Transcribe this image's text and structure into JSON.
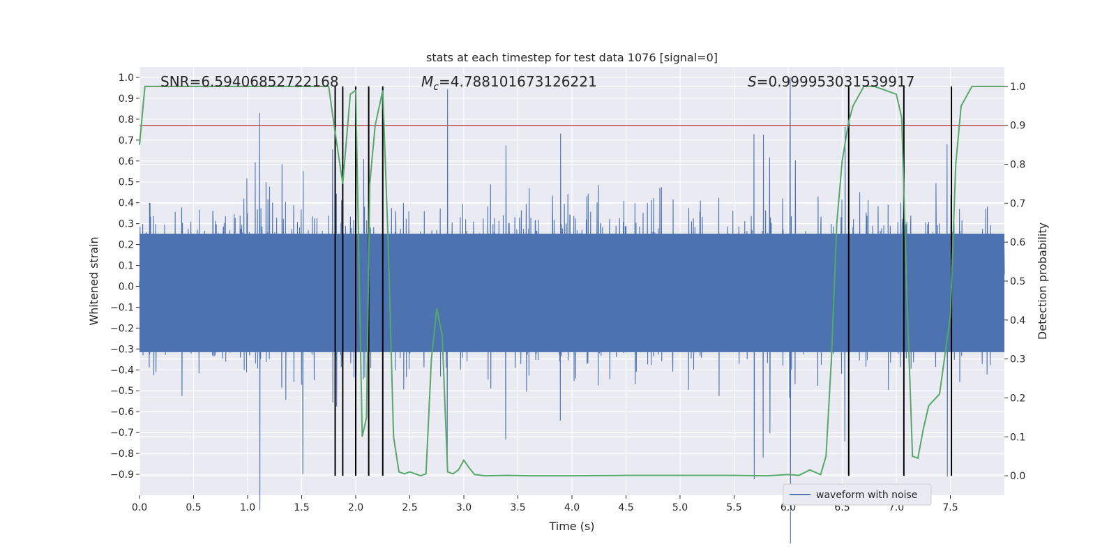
{
  "chart_data": {
    "type": "line",
    "title": "stats at each timestep for test data 1076 [signal=0]",
    "xlabel": "Time (s)",
    "ylabel": "Whitened strain",
    "y2label": "Detection probability",
    "xlim": [
      0,
      8.0
    ],
    "ylim": [
      -1.0,
      1.05
    ],
    "y2lim": [
      -0.05,
      1.05
    ],
    "x_ticks": [
      "0.0",
      "0.5",
      "1.0",
      "1.5",
      "2.0",
      "2.5",
      "3.0",
      "3.5",
      "4.0",
      "4.5",
      "5.0",
      "5.5",
      "6.0",
      "6.5",
      "7.0",
      "7.5"
    ],
    "y_ticks": [
      "1.0",
      "0.9",
      "0.8",
      "0.7",
      "0.6",
      "0.5",
      "0.4",
      "0.3",
      "0.2",
      "0.1",
      "0.0",
      "−0.1",
      "−0.2",
      "−0.3",
      "−0.4",
      "−0.5",
      "−0.6",
      "−0.7",
      "−0.8",
      "−0.9"
    ],
    "y2_ticks": [
      "1.0",
      "0.9",
      "0.8",
      "0.7",
      "0.6",
      "0.5",
      "0.4",
      "0.3",
      "0.2",
      "0.1",
      "0.0"
    ],
    "grid": true,
    "legend": {
      "label": "waveform with noise",
      "placement": "lower-right"
    },
    "annotations": {
      "snr_label": "SNR",
      "snr_value": "6.59406852722168",
      "mc_label": "M",
      "mc_sub": "c",
      "mc_value": "4.788101673126221",
      "s_label": "S",
      "s_value": "0.999953031539917"
    },
    "threshold": 0.9,
    "vertical_lines": [
      1.81,
      1.88,
      2.0,
      2.12,
      2.25,
      6.56,
      7.07,
      7.51
    ],
    "strain_noise": {
      "seed": 1076,
      "n_samples": 1600,
      "envelope": 0.42,
      "peaks": [
        {
          "x": 6.02,
          "y": 1.0
        },
        {
          "x": 1.11,
          "y": 0.83
        },
        {
          "x": 1.51,
          "y": -0.9
        }
      ]
    },
    "probability": {
      "name": "detection probability",
      "x": [
        0.0,
        0.05,
        0.1,
        0.2,
        0.4,
        0.6,
        0.8,
        1.0,
        1.2,
        1.4,
        1.6,
        1.75,
        1.8,
        1.88,
        1.95,
        2.0,
        2.06,
        2.1,
        2.13,
        2.18,
        2.25,
        2.3,
        2.35,
        2.4,
        2.45,
        2.5,
        2.55,
        2.6,
        2.65,
        2.7,
        2.75,
        2.8,
        2.85,
        2.9,
        2.95,
        3.0,
        3.05,
        3.1,
        3.2,
        3.4,
        3.6,
        4.0,
        4.5,
        5.0,
        5.5,
        5.8,
        6.0,
        6.1,
        6.2,
        6.3,
        6.35,
        6.4,
        6.45,
        6.5,
        6.56,
        6.6,
        6.7,
        6.8,
        6.9,
        7.0,
        7.05,
        7.1,
        7.15,
        7.2,
        7.25,
        7.3,
        7.4,
        7.5,
        7.55,
        7.6,
        7.7,
        8.0
      ],
      "y": [
        0.85,
        1.0,
        1.0,
        1.0,
        1.0,
        1.0,
        1.0,
        1.0,
        1.0,
        1.0,
        1.0,
        1.0,
        0.9,
        0.75,
        0.98,
        0.99,
        0.1,
        0.15,
        0.75,
        0.9,
        0.99,
        0.6,
        0.1,
        0.01,
        0.005,
        0.01,
        0.005,
        0.0,
        0.005,
        0.3,
        0.43,
        0.36,
        0.01,
        0.005,
        0.015,
        0.04,
        0.02,
        0.003,
        0.0,
        0.001,
        0.0,
        0.0,
        0.001,
        0.001,
        0.001,
        0.0,
        0.003,
        0.001,
        0.015,
        0.003,
        0.05,
        0.3,
        0.65,
        0.81,
        0.91,
        0.95,
        1.0,
        1.0,
        0.99,
        0.98,
        0.92,
        0.45,
        0.05,
        0.045,
        0.12,
        0.18,
        0.21,
        0.41,
        0.8,
        0.95,
        1.0,
        1.0
      ]
    }
  }
}
